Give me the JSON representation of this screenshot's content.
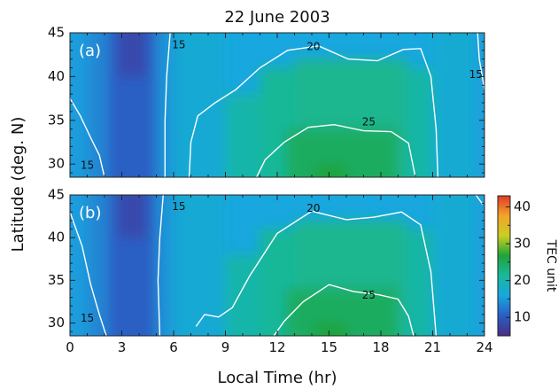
{
  "chart_data": {
    "type": "heatmap",
    "title": "22 June 2003",
    "xlabel": "Local Time (hr)",
    "ylabel": "Latitude (deg. N)",
    "xlim": [
      0,
      24
    ],
    "ylim": [
      28.5,
      45
    ],
    "xticks": [
      "0",
      "3",
      "6",
      "9",
      "12",
      "15",
      "18",
      "21",
      "24"
    ],
    "yticks": [
      "30",
      "35",
      "40",
      "45"
    ],
    "colorbar": {
      "label": "TEC unit",
      "range": [
        5,
        43
      ],
      "ticks": [
        "10",
        "20",
        "30",
        "40"
      ],
      "colors": [
        "#4a2c86",
        "#2a5ec4",
        "#18a6e0",
        "#19b99c",
        "#1ea33a",
        "#c9cf20",
        "#f3a42a",
        "#e03a2a"
      ]
    },
    "panels": [
      {
        "label": "(a)",
        "contours": [
          {
            "level": "15",
            "segments": [
              [
                [
                  0,
                  37.5
                ],
                [
                  0.6,
                  35.5
                ],
                [
                  1.2,
                  33
                ],
                [
                  1.7,
                  31
                ],
                [
                  2.0,
                  28.5
                ]
              ],
              [
                [
                  5.8,
                  45
                ],
                [
                  5.6,
                  40
                ],
                [
                  5.5,
                  35
                ],
                [
                  5.5,
                  28.5
                ]
              ],
              [
                [
                  23.6,
                  45
                ],
                [
                  23.7,
                  42
                ],
                [
                  24,
                  38.5
                ]
              ]
            ]
          },
          {
            "level": "20",
            "segments": [
              [
                [
                  6.9,
                  28.5
                ],
                [
                  7,
                  32.5
                ],
                [
                  7.4,
                  35.5
                ],
                [
                  8.4,
                  37
                ],
                [
                  9.6,
                  38.5
                ],
                [
                  11,
                  41
                ],
                [
                  12.6,
                  43
                ],
                [
                  14.4,
                  43.5
                ],
                [
                  16.1,
                  42
                ],
                [
                  17.8,
                  41.8
                ],
                [
                  19.3,
                  43.1
                ],
                [
                  20.3,
                  43.2
                ],
                [
                  20.9,
                  40
                ],
                [
                  21.2,
                  34
                ],
                [
                  21.3,
                  28.5
                ]
              ]
            ]
          },
          {
            "level": "25",
            "segments": [
              [
                [
                  10.8,
                  28.5
                ],
                [
                  11.3,
                  30.5
                ],
                [
                  12.4,
                  32.5
                ],
                [
                  13.8,
                  34.2
                ],
                [
                  15.3,
                  34.5
                ],
                [
                  17,
                  33.8
                ],
                [
                  18.6,
                  33.7
                ],
                [
                  19.6,
                  32.4
                ],
                [
                  20,
                  28.5
                ]
              ]
            ]
          }
        ],
        "contour_labels": [
          {
            "text": "15",
            "x": 1.0,
            "y": 29.8
          },
          {
            "text": "15",
            "x": 6.3,
            "y": 43.6
          },
          {
            "text": "20",
            "x": 14.1,
            "y": 43.4
          },
          {
            "text": "25",
            "x": 17.3,
            "y": 34.8
          },
          {
            "text": "15",
            "x": 23.5,
            "y": 40.2
          }
        ]
      },
      {
        "label": "(b)",
        "contours": [
          {
            "level": "15",
            "segments": [
              [
                [
                  0,
                  43
                ],
                [
                  0.7,
                  39
                ],
                [
                  1.2,
                  34.5
                ],
                [
                  1.7,
                  31
                ],
                [
                  2.1,
                  28.5
                ]
              ],
              [
                [
                  5.4,
                  45
                ],
                [
                  5.2,
                  40
                ],
                [
                  5.1,
                  35
                ],
                [
                  5.2,
                  28.5
                ]
              ],
              [
                [
                  23.5,
                  45
                ],
                [
                  23.9,
                  43.9
                ]
              ]
            ]
          },
          {
            "level": "20",
            "segments": [
              [
                [
                  7.3,
                  29.6
                ],
                [
                  7.8,
                  31
                ],
                [
                  8.6,
                  30.7
                ],
                [
                  9.4,
                  31.8
                ],
                [
                  10.4,
                  35.5
                ],
                [
                  12,
                  40.5
                ],
                [
                  14,
                  43.1
                ],
                [
                  16,
                  42.1
                ],
                [
                  17.6,
                  42.4
                ],
                [
                  19.2,
                  43
                ],
                [
                  20.3,
                  41.5
                ],
                [
                  20.9,
                  36
                ],
                [
                  21.2,
                  28.5
                ]
              ]
            ]
          },
          {
            "level": "25",
            "segments": [
              [
                [
                  11.8,
                  28.5
                ],
                [
                  12.4,
                  30.2
                ],
                [
                  13.5,
                  32.5
                ],
                [
                  15,
                  34.5
                ],
                [
                  16.4,
                  33.7
                ],
                [
                  17.9,
                  33.3
                ],
                [
                  19,
                  32.8
                ],
                [
                  19.6,
                  30.8
                ],
                [
                  19.9,
                  28.5
                ]
              ]
            ]
          }
        ],
        "contour_labels": [
          {
            "text": "15",
            "x": 1.0,
            "y": 30.5
          },
          {
            "text": "15",
            "x": 6.3,
            "y": 43.6
          },
          {
            "text": "20",
            "x": 14.1,
            "y": 43.4
          },
          {
            "text": "25",
            "x": 17.3,
            "y": 33.2
          }
        ]
      }
    ]
  }
}
